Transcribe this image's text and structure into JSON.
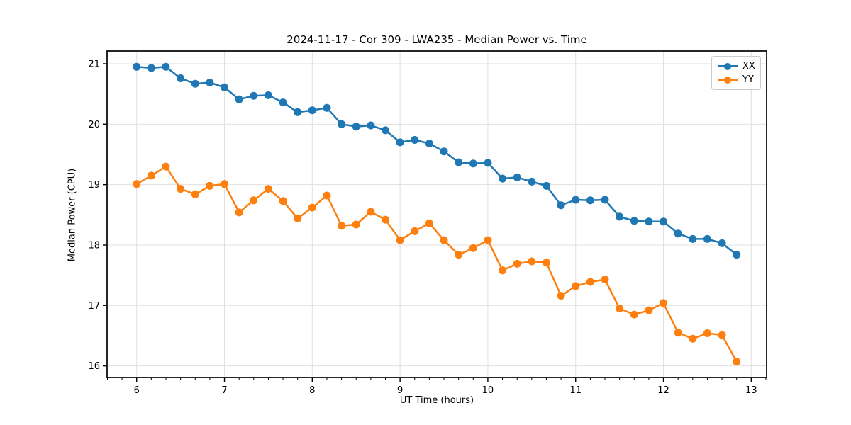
{
  "figure": {
    "background": "#ffffff"
  },
  "chart_data": {
    "type": "line",
    "title": "2024-11-17 - Cor 309 - LWA235 - Median Power vs. Time",
    "xlabel": "UT Time (hours)",
    "ylabel": "Median Power (CPU)",
    "xlim": [
      5.663,
      13.175
    ],
    "ylim": [
      15.808,
      21.211
    ],
    "xticks": [
      6,
      7,
      8,
      9,
      10,
      11,
      12,
      13
    ],
    "yticks": [
      16,
      17,
      18,
      19,
      20,
      21
    ],
    "x_minor_step": 0.1667,
    "grid": true,
    "grid_color": "#e0e0e0",
    "legend_position": "upper right",
    "marker": "circle",
    "x": [
      6.0,
      6.167,
      6.333,
      6.5,
      6.667,
      6.833,
      7.0,
      7.167,
      7.333,
      7.5,
      7.667,
      7.833,
      8.0,
      8.167,
      8.333,
      8.5,
      8.667,
      8.833,
      9.0,
      9.167,
      9.333,
      9.5,
      9.667,
      9.833,
      10.0,
      10.167,
      10.333,
      10.5,
      10.667,
      10.833,
      11.0,
      11.167,
      11.333,
      11.5,
      11.667,
      11.833,
      12.0,
      12.167,
      12.333,
      12.5,
      12.667,
      12.833
    ],
    "series": [
      {
        "name": "XX",
        "color": "#1f77b4",
        "values": [
          20.95,
          20.93,
          20.95,
          20.76,
          20.67,
          20.69,
          20.61,
          20.41,
          20.47,
          20.48,
          20.36,
          20.2,
          20.23,
          20.27,
          20.0,
          19.96,
          19.98,
          19.9,
          19.7,
          19.74,
          19.68,
          19.55,
          19.37,
          19.35,
          19.36,
          19.1,
          19.12,
          19.05,
          18.98,
          18.66,
          18.75,
          18.74,
          18.75,
          18.47,
          18.4,
          18.39,
          18.39,
          18.19,
          18.1,
          18.1,
          18.03,
          17.84
        ]
      },
      {
        "name": "YY",
        "color": "#ff7f0e",
        "values": [
          19.01,
          19.15,
          19.3,
          18.93,
          18.84,
          18.98,
          19.01,
          18.54,
          18.74,
          18.93,
          18.73,
          18.44,
          18.62,
          18.82,
          18.32,
          18.34,
          18.55,
          18.42,
          18.08,
          18.23,
          18.36,
          18.08,
          17.84,
          17.95,
          18.08,
          17.58,
          17.69,
          17.73,
          17.71,
          17.16,
          17.32,
          17.39,
          17.43,
          16.95,
          16.85,
          16.92,
          17.04,
          16.55,
          16.45,
          16.54,
          16.51,
          16.07
        ]
      }
    ]
  }
}
